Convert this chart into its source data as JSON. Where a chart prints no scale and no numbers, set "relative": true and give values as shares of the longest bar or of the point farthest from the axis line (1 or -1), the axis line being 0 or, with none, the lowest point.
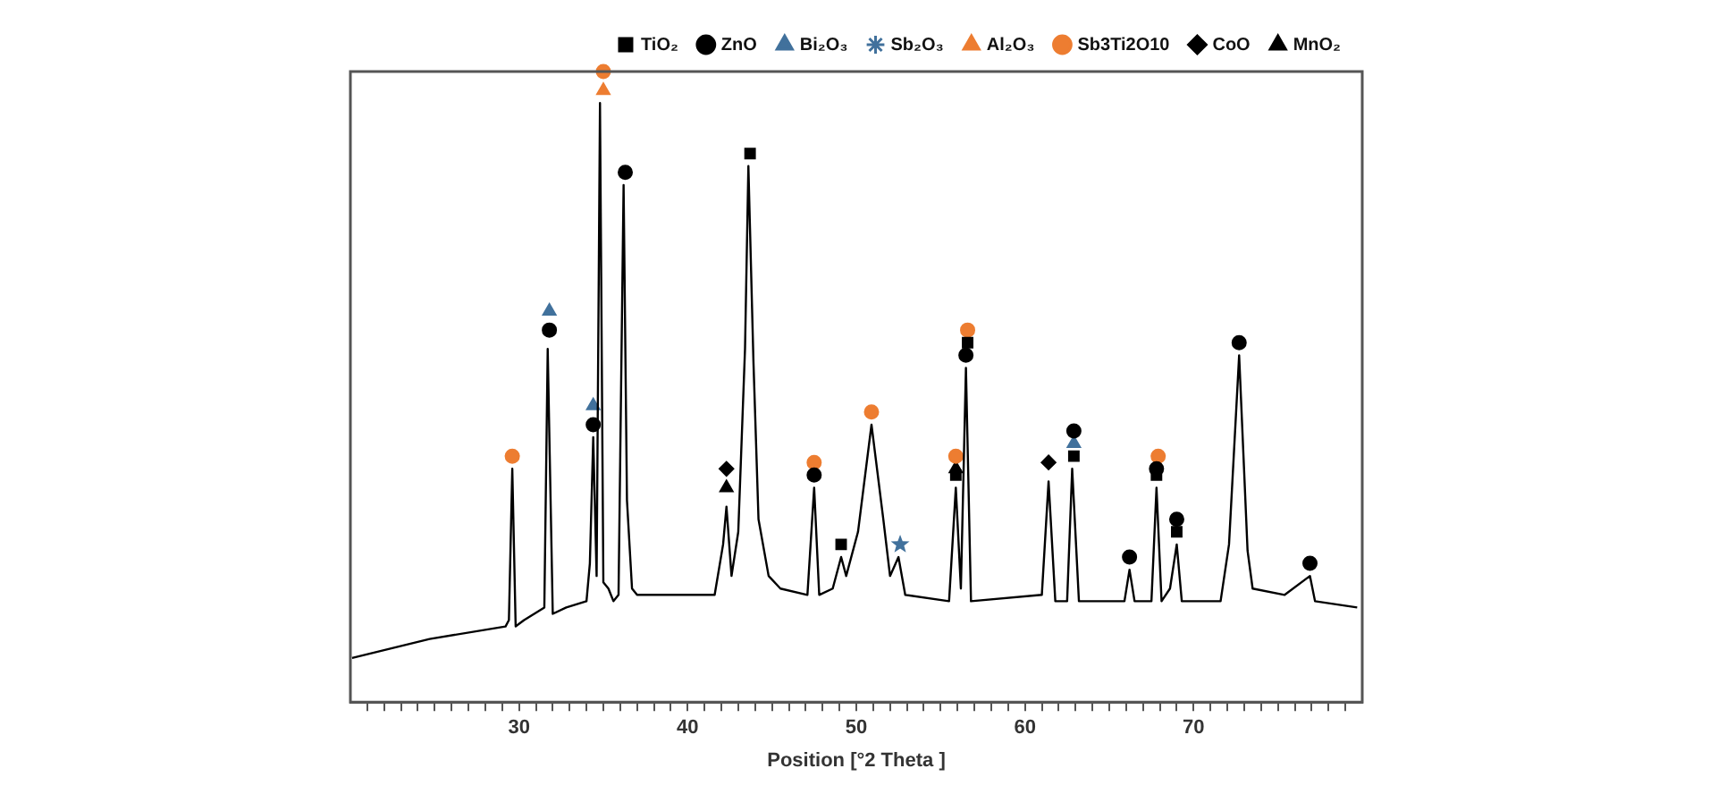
{
  "chart_data": {
    "type": "line",
    "relative": true,
    "xlabel": "Position [°2 Theta ]",
    "legend": "top right",
    "xlim": [
      20,
      80
    ],
    "xticks": [
      {
        "value": 21,
        "label": null
      },
      {
        "value": 22,
        "label": null
      },
      {
        "value": 23,
        "label": null
      },
      {
        "value": 24,
        "label": null
      },
      {
        "value": 25,
        "label": null
      },
      {
        "value": 26,
        "label": null
      },
      {
        "value": 27,
        "label": null
      },
      {
        "value": 28,
        "label": null
      },
      {
        "value": 29,
        "label": null
      },
      30,
      {
        "value": 31,
        "label": null
      },
      {
        "value": 32,
        "label": null
      },
      {
        "value": 33,
        "label": null
      },
      {
        "value": 34,
        "label": null
      },
      {
        "value": 35,
        "label": null
      },
      {
        "value": 36,
        "label": null
      },
      {
        "value": 37,
        "label": null
      },
      {
        "value": 38,
        "label": null
      },
      {
        "value": 39,
        "label": null
      },
      40,
      {
        "value": 41,
        "label": null
      },
      {
        "value": 42,
        "label": null
      },
      {
        "value": 43,
        "label": null
      },
      {
        "value": 44,
        "label": null
      },
      {
        "value": 45,
        "label": null
      },
      {
        "value": 46,
        "label": null
      },
      {
        "value": 47,
        "label": null
      },
      {
        "value": 48,
        "label": null
      },
      {
        "value": 49,
        "label": null
      },
      50,
      {
        "value": 51,
        "label": null
      },
      {
        "value": 52,
        "label": null
      },
      {
        "value": 53,
        "label": null
      },
      {
        "value": 54,
        "label": null
      },
      {
        "value": 55,
        "label": null
      },
      {
        "value": 56,
        "label": null
      },
      {
        "value": 57,
        "label": null
      },
      {
        "value": 58,
        "label": null
      },
      {
        "value": 59,
        "label": null
      },
      60,
      {
        "value": 61,
        "label": null
      },
      {
        "value": 62,
        "label": null
      },
      {
        "value": 63,
        "label": null
      },
      {
        "value": 64,
        "label": null
      },
      {
        "value": 65,
        "label": null
      },
      {
        "value": 66,
        "label": null
      },
      {
        "value": 67,
        "label": null
      },
      {
        "value": 68,
        "label": null
      },
      {
        "value": 69,
        "label": null
      },
      70,
      {
        "value": 71,
        "label": null
      },
      {
        "value": 72,
        "label": null
      },
      {
        "value": 73,
        "label": null
      },
      {
        "value": 74,
        "label": null
      },
      {
        "value": 75,
        "label": null
      },
      {
        "value": 76,
        "label": null
      },
      {
        "value": 77,
        "label": null
      },
      {
        "value": 78,
        "label": null
      },
      {
        "value": 79,
        "label": null
      }
    ],
    "series": [
      {
        "color": "#000000",
        "marker": "none",
        "x": [
          20.1,
          24.7,
          29.2,
          29.4,
          29.6,
          29.8,
          30.3,
          31.5,
          31.7,
          32.0,
          32.8,
          34.0,
          34.2,
          34.4,
          34.6,
          34.8,
          35.0,
          35.3,
          35.6,
          35.9,
          36.2,
          36.4,
          36.7,
          37.0,
          41.6,
          42.1,
          42.3,
          42.6,
          43.0,
          43.4,
          43.6,
          43.9,
          44.2,
          44.8,
          45.5,
          47.1,
          47.5,
          47.8,
          48.6,
          49.1,
          49.4,
          50.1,
          50.9,
          51.6,
          52.0,
          52.5,
          52.9,
          55.5,
          55.9,
          56.2,
          56.5,
          56.8,
          61.0,
          61.4,
          61.8,
          62.5,
          62.8,
          63.2,
          65.9,
          66.2,
          66.5,
          67.5,
          67.8,
          68.1,
          68.6,
          69.0,
          69.3,
          71.6,
          72.1,
          72.7,
          73.2,
          73.5,
          75.4,
          76.9,
          77.2,
          79.7
        ],
        "values": [
          0.07,
          0.1,
          0.12,
          0.13,
          0.37,
          0.12,
          0.13,
          0.15,
          0.56,
          0.14,
          0.15,
          0.16,
          0.22,
          0.42,
          0.2,
          0.95,
          0.19,
          0.18,
          0.16,
          0.17,
          0.82,
          0.32,
          0.18,
          0.17,
          0.17,
          0.25,
          0.31,
          0.2,
          0.27,
          0.56,
          0.85,
          0.54,
          0.29,
          0.2,
          0.18,
          0.17,
          0.34,
          0.17,
          0.18,
          0.23,
          0.2,
          0.27,
          0.44,
          0.29,
          0.2,
          0.23,
          0.17,
          0.16,
          0.34,
          0.18,
          0.53,
          0.16,
          0.17,
          0.35,
          0.16,
          0.16,
          0.37,
          0.16,
          0.16,
          0.21,
          0.16,
          0.16,
          0.34,
          0.16,
          0.18,
          0.25,
          0.16,
          0.16,
          0.25,
          0.55,
          0.24,
          0.18,
          0.17,
          0.2,
          0.16,
          0.15
        ]
      },
      {
        "type": "scatter",
        "name": "TiO₂",
        "color": "#000000",
        "marker": "square",
        "x": [
          43.7,
          49.1,
          55.9,
          56.6,
          62.9,
          67.8,
          69.0
        ],
        "values": [
          0.87,
          0.25,
          0.36,
          0.57,
          0.39,
          0.36,
          0.27
        ]
      },
      {
        "type": "scatter",
        "name": "ZnO",
        "color": "#000000",
        "marker": "circle",
        "x": [
          31.8,
          34.4,
          36.3,
          47.5,
          56.5,
          62.9,
          66.2,
          67.8,
          69.0,
          72.7,
          76.9
        ],
        "values": [
          0.59,
          0.44,
          0.84,
          0.36,
          0.55,
          0.43,
          0.23,
          0.37,
          0.29,
          0.57,
          0.22
        ]
      },
      {
        "type": "scatter",
        "name": "Bi₂O₃",
        "color": "#41719c",
        "marker": "triangle",
        "x": [
          31.8,
          34.4,
          62.9
        ],
        "values": [
          0.62,
          0.47,
          0.41
        ]
      },
      {
        "type": "scatter",
        "name": "Sb₂O₃",
        "color": "#41719c",
        "marker": "star",
        "x": [
          52.6
        ],
        "values": [
          0.25
        ]
      },
      {
        "type": "scatter",
        "name": "Al₂O₃",
        "color": "#ed7d31",
        "marker": "triangle",
        "x": [
          35.0
        ],
        "values": [
          0.97
        ]
      },
      {
        "type": "scatter",
        "name": "Sb3Ti2O10",
        "color": "#ed7d31",
        "marker": "circle",
        "x": [
          29.6,
          35.0,
          47.5,
          50.9,
          55.9,
          56.6,
          67.9
        ],
        "values": [
          0.39,
          1,
          0.38,
          0.46,
          0.39,
          0.59,
          0.39
        ]
      },
      {
        "type": "scatter",
        "name": "CoO",
        "color": "#000000",
        "marker": "diamond",
        "x": [
          42.3,
          61.4
        ],
        "values": [
          0.37,
          0.38
        ]
      },
      {
        "type": "scatter",
        "name": "MnO₂",
        "color": "#000000",
        "marker": "triangle",
        "x": [
          42.3,
          55.9
        ],
        "values": [
          0.34,
          0.37
        ]
      }
    ]
  }
}
